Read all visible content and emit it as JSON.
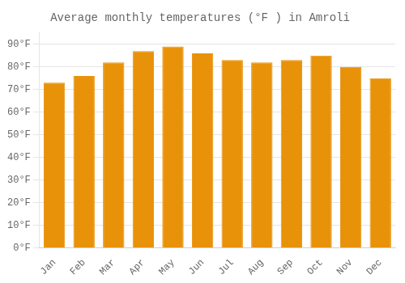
{
  "chart_data": {
    "type": "bar",
    "title": "Average monthly temperatures (°F ) in Amroli",
    "categories": [
      "Jan",
      "Feb",
      "Mar",
      "Apr",
      "May",
      "Jun",
      "Jul",
      "Aug",
      "Sep",
      "Oct",
      "Nov",
      "Dec"
    ],
    "values": [
      73,
      76,
      82,
      87,
      89,
      86,
      83,
      82,
      83,
      85,
      80,
      75
    ],
    "color": "#E8920A",
    "ylim": [
      0,
      95
    ],
    "yticks": [
      {
        "value": 0,
        "label": "0°F"
      },
      {
        "value": 10,
        "label": "10°F"
      },
      {
        "value": 20,
        "label": "20°F"
      },
      {
        "value": 30,
        "label": "30°F"
      },
      {
        "value": 40,
        "label": "40°F"
      },
      {
        "value": 50,
        "label": "50°F"
      },
      {
        "value": 60,
        "label": "60°F"
      },
      {
        "value": 70,
        "label": "70°F"
      },
      {
        "value": 80,
        "label": "80°F"
      },
      {
        "value": 90,
        "label": "90°F"
      }
    ],
    "grid": true
  }
}
